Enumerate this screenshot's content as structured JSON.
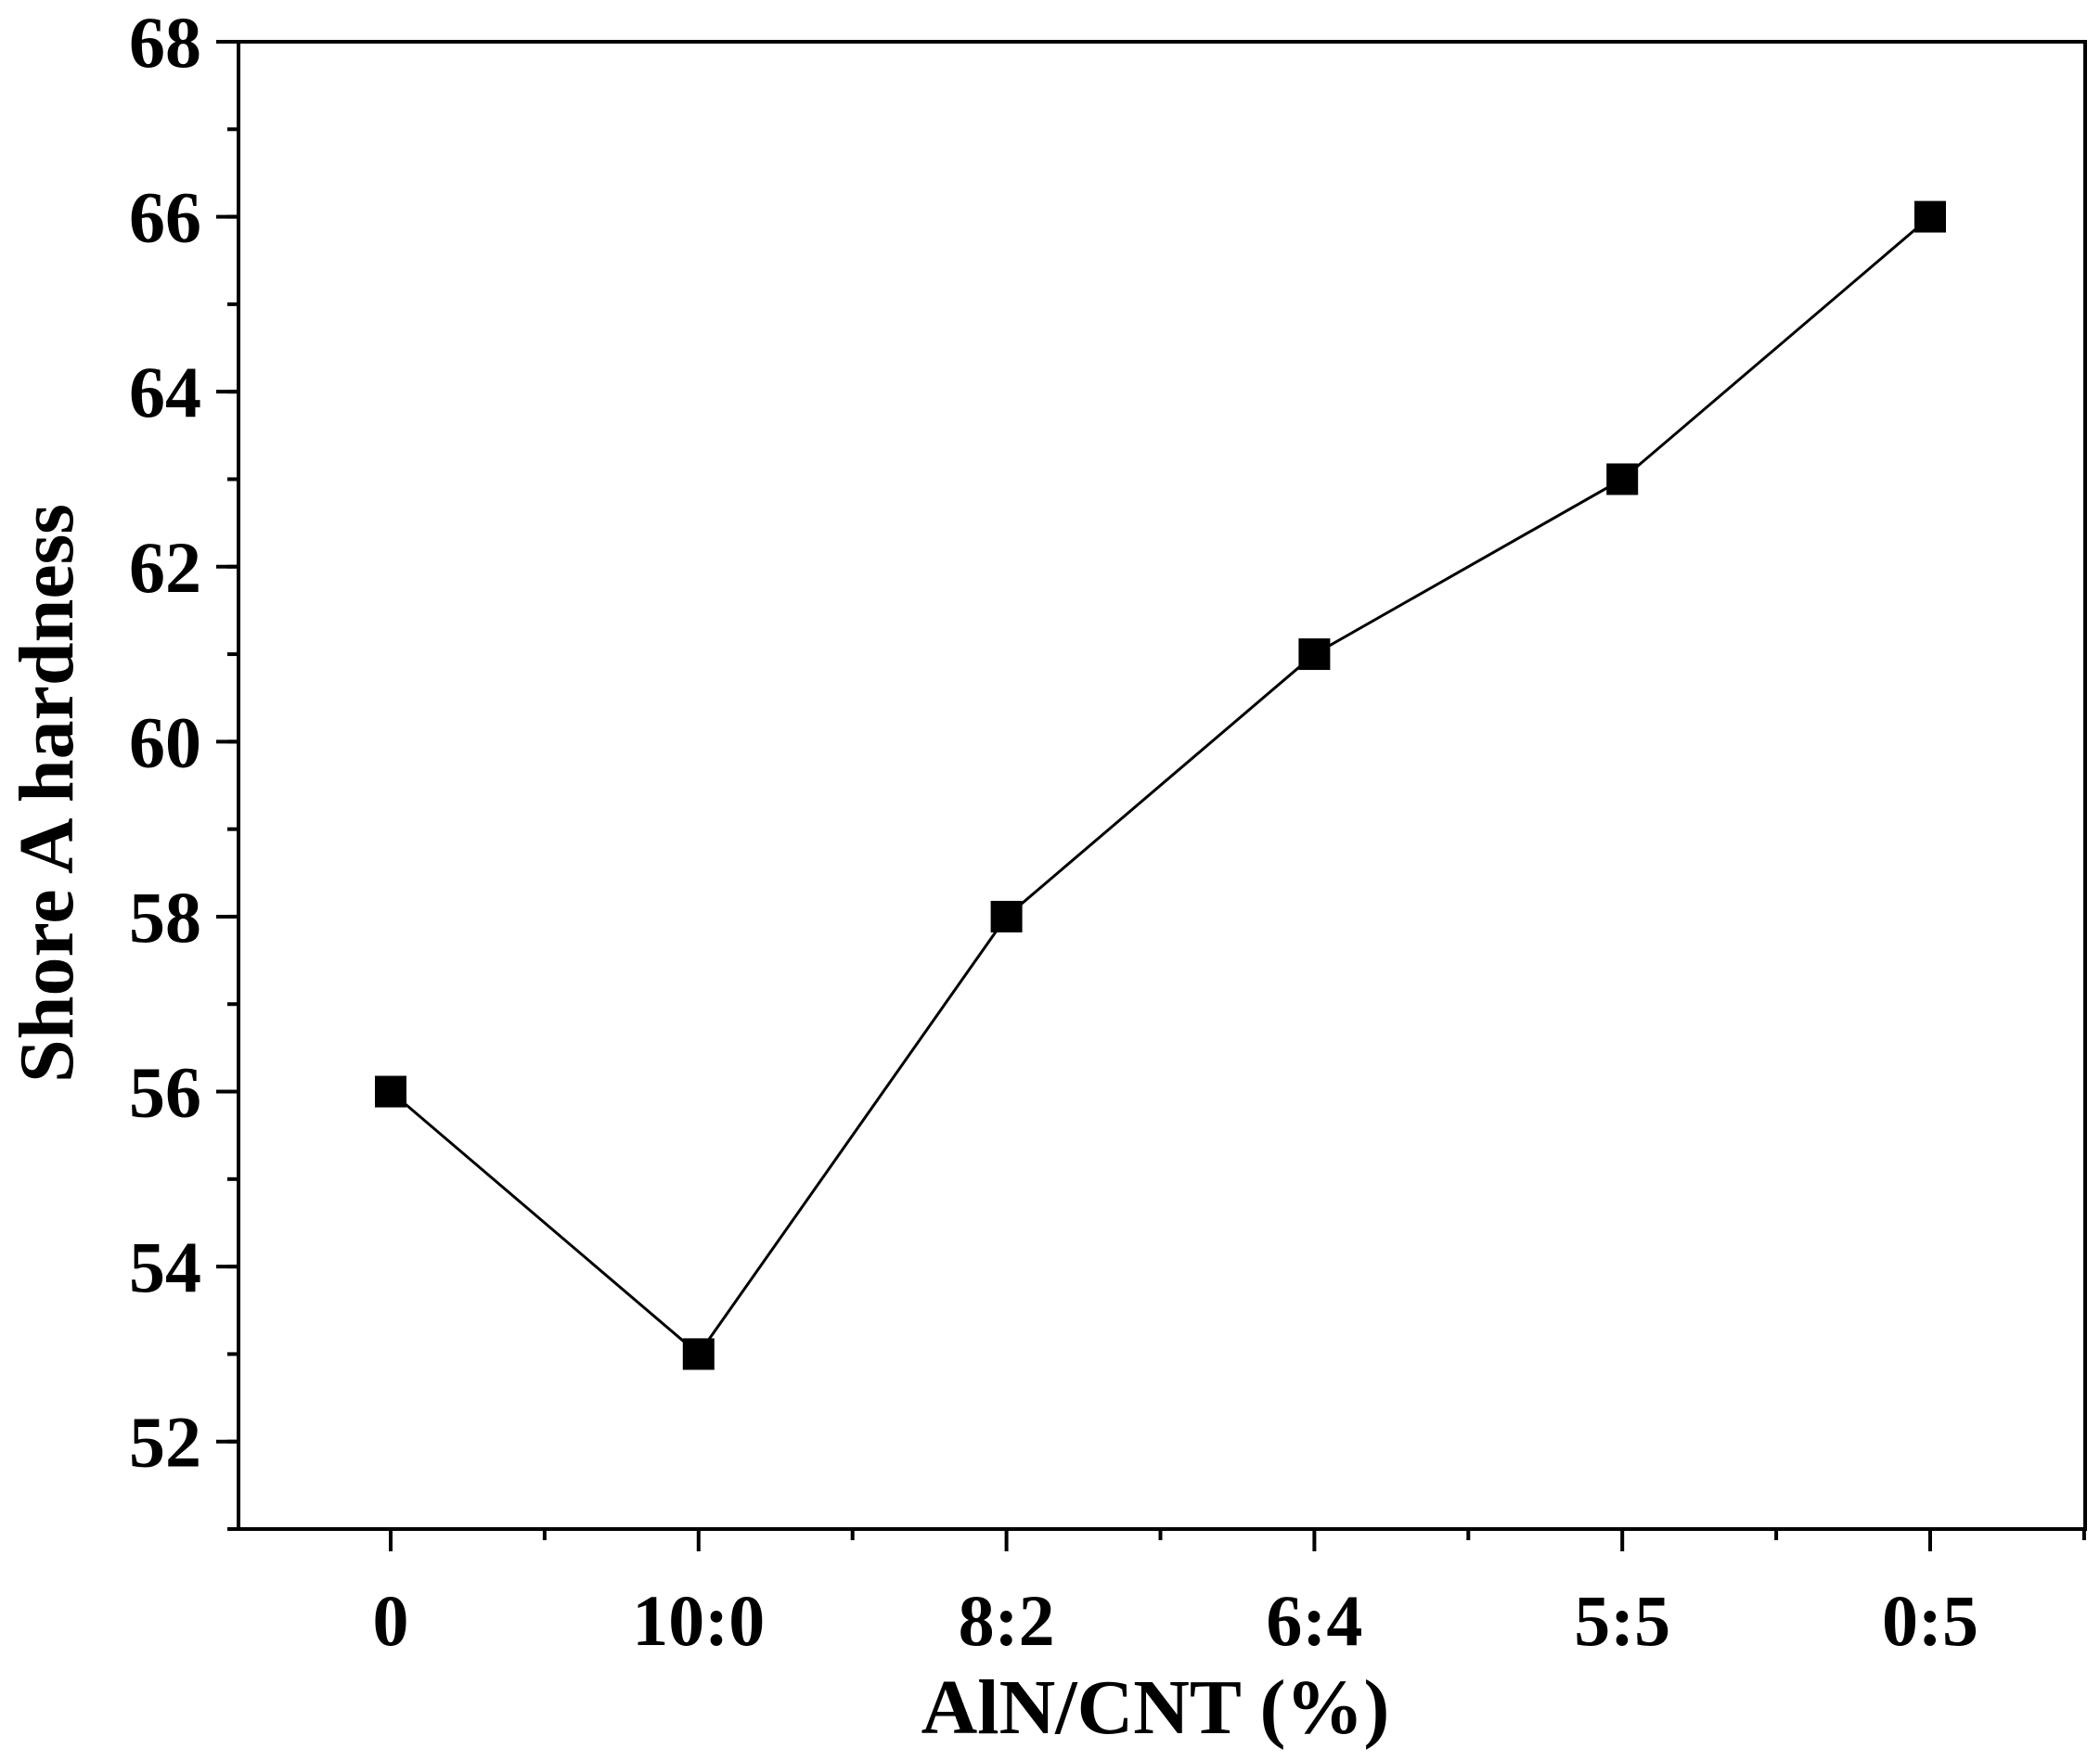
{
  "chart_data": {
    "type": "line",
    "xlabel": "AlN/CNT (%)",
    "ylabel": "Shore A hardness",
    "categories": [
      "0",
      "10:0",
      "8:2",
      "6:4",
      "5:5",
      "0:5"
    ],
    "series": [
      {
        "values": [
          56,
          53,
          58,
          61,
          63,
          66
        ],
        "marker": "filled-square",
        "color": "#000000"
      }
    ],
    "ylim": [
      51,
      68
    ],
    "yticks": [
      52,
      54,
      56,
      58,
      60,
      62,
      64,
      66,
      68
    ],
    "y_minor_step": 1,
    "x_minor_ticks": true,
    "grid": false,
    "legend": "none"
  }
}
